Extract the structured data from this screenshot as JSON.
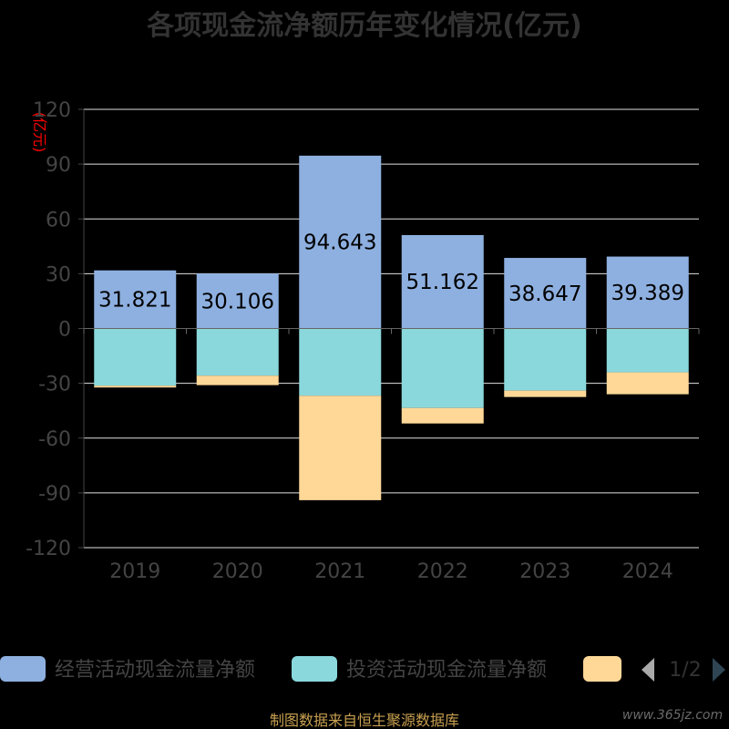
{
  "chart_data": {
    "type": "bar",
    "stacked": true,
    "title": "各项现金流净额历年变化情况(亿元)",
    "unit": "(亿元)",
    "categories": [
      "2019",
      "2020",
      "2021",
      "2022",
      "2023",
      "2024"
    ],
    "ylim": [
      -120,
      120
    ],
    "yticks": [
      "120",
      "90",
      "60",
      "30",
      "0",
      "-30",
      "-60",
      "-90",
      "-120"
    ],
    "grid": true,
    "legend_placement": "bottom",
    "series": [
      {
        "name": "经营活动现金流量净额",
        "color": "#8eb0e0",
        "values": [
          31.821,
          30.106,
          94.643,
          51.162,
          38.647,
          39.389
        ],
        "labels": [
          "31.821",
          "30.106",
          "94.643",
          "51.162",
          "38.647",
          "39.389"
        ]
      },
      {
        "name": "投资活动现金流量净额",
        "color": "#8ad8dc",
        "values": [
          -31.3,
          -25.8,
          -36.8,
          -43.5,
          -34.0,
          -24.0
        ]
      },
      {
        "color": "#ffd898",
        "values": [
          -1.0,
          -5.2,
          -57.2,
          -8.5,
          -3.5,
          -12.0
        ]
      }
    ]
  },
  "legend": {
    "page": "1/2"
  },
  "footer": {
    "source": "制图数据来自恒生聚源数据库",
    "watermark": "www.365jz.com"
  }
}
